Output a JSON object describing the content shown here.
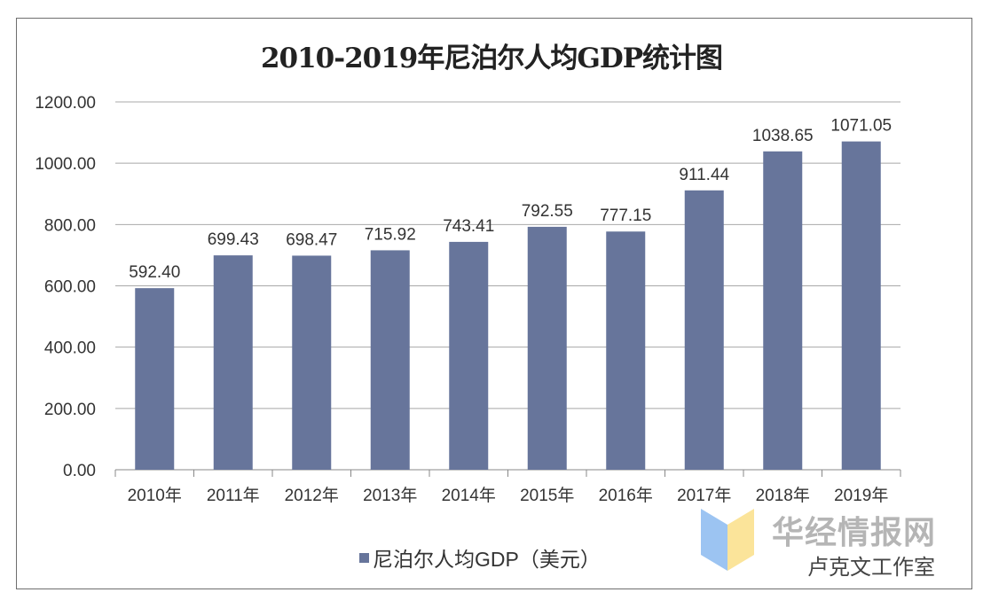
{
  "chart_data": {
    "type": "bar",
    "title": "2010-2019年尼泊尔人均GDP统计图",
    "categories": [
      "2010年",
      "2011年",
      "2012年",
      "2013年",
      "2014年",
      "2015年",
      "2016年",
      "2017年",
      "2018年",
      "2019年"
    ],
    "series": [
      {
        "name": "尼泊尔人均GDP（美元）",
        "values": [
          592.4,
          699.43,
          698.47,
          715.92,
          743.41,
          792.55,
          777.15,
          911.44,
          1038.65,
          1071.05
        ]
      }
    ],
    "data_labels": [
      "592.40",
      "699.43",
      "698.47",
      "715.92",
      "743.41",
      "792.55",
      "777.15",
      "911.44",
      "1038.65",
      "1071.05"
    ],
    "y_ticks": [
      "0.00",
      "200.00",
      "400.00",
      "600.00",
      "800.00",
      "1000.00",
      "1200.00"
    ],
    "ylim": [
      0,
      1200
    ],
    "grid": true,
    "legend": "bottom-center",
    "bar_color": "#67759b"
  },
  "watermark": {
    "brand": "华经情报网",
    "account": "卢克文工作室"
  }
}
